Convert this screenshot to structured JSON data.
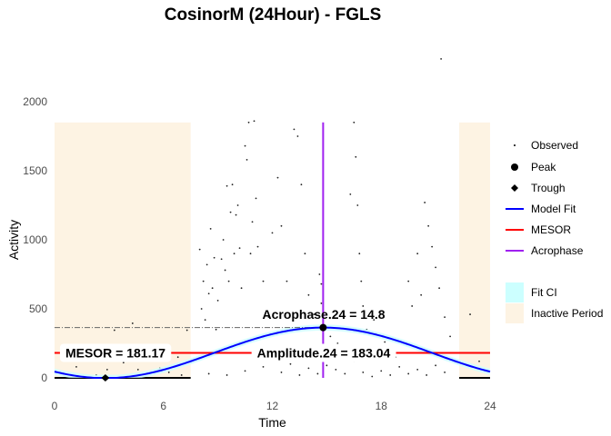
{
  "chart_data": {
    "type": "scatter",
    "title": "CosinorM (24Hour) - FGLS",
    "xlabel": "Time",
    "ylabel": "Activity",
    "xlim": [
      0,
      24
    ],
    "ylim": [
      0,
      2000
    ],
    "xticks": [
      0,
      6,
      12,
      18,
      24
    ],
    "yticks": [
      0,
      500,
      1000,
      1500,
      2000
    ],
    "grid": false,
    "legend_position": "right",
    "model": {
      "period": 24,
      "mesor": 181.17,
      "amplitude": 183.04,
      "acrophase": 14.8,
      "ci_halfwidth": 22
    },
    "peak": {
      "x": 14.8,
      "y": 364.21
    },
    "trough": {
      "x": 2.8,
      "y": 0
    },
    "inactive_periods": [
      [
        0,
        7.5
      ],
      [
        22.3,
        24
      ]
    ],
    "inactive_top": 1850,
    "annotations": {
      "mesor": "MESOR = 181.17",
      "amplitude": "Amplitude.24 = 183.04",
      "acrophase": "Acrophase.24 = 14.8"
    },
    "observed": [
      [
        0.5,
        30
      ],
      [
        1.2,
        80
      ],
      [
        1.6,
        240
      ],
      [
        2.3,
        20
      ],
      [
        2.9,
        60
      ],
      [
        3.3,
        345
      ],
      [
        3.8,
        110
      ],
      [
        4.3,
        395
      ],
      [
        4.6,
        60
      ],
      [
        5.2,
        150
      ],
      [
        5.8,
        70
      ],
      [
        6.3,
        40
      ],
      [
        6.8,
        150
      ],
      [
        7.3,
        345
      ],
      [
        7.0,
        20
      ],
      [
        8.0,
        930
      ],
      [
        8.1,
        500
      ],
      [
        8.2,
        700
      ],
      [
        8.3,
        420
      ],
      [
        8.4,
        820
      ],
      [
        8.5,
        610
      ],
      [
        8.6,
        1080
      ],
      [
        8.7,
        650
      ],
      [
        8.8,
        870
      ],
      [
        8.9,
        350
      ],
      [
        9.0,
        560
      ],
      [
        9.2,
        860
      ],
      [
        9.3,
        1000
      ],
      [
        9.4,
        780
      ],
      [
        9.5,
        1390
      ],
      [
        9.6,
        700
      ],
      [
        9.7,
        1200
      ],
      [
        9.8,
        1400
      ],
      [
        9.9,
        900
      ],
      [
        10.0,
        1180
      ],
      [
        10.1,
        1250
      ],
      [
        10.2,
        940
      ],
      [
        10.3,
        650
      ],
      [
        10.5,
        1680
      ],
      [
        10.6,
        1580
      ],
      [
        10.7,
        1850
      ],
      [
        10.8,
        900
      ],
      [
        10.9,
        1130
      ],
      [
        11.0,
        1860
      ],
      [
        11.1,
        1300
      ],
      [
        11.2,
        950
      ],
      [
        11.5,
        700
      ],
      [
        11.8,
        440
      ],
      [
        12.0,
        1050
      ],
      [
        12.3,
        1450
      ],
      [
        12.5,
        1100
      ],
      [
        12.8,
        700
      ],
      [
        13.2,
        1800
      ],
      [
        13.4,
        1750
      ],
      [
        13.6,
        1400
      ],
      [
        13.8,
        900
      ],
      [
        14.0,
        600
      ],
      [
        14.3,
        460
      ],
      [
        14.6,
        750
      ],
      [
        14.7,
        680
      ],
      [
        14.7,
        540
      ],
      [
        15.2,
        300
      ],
      [
        15.6,
        250
      ],
      [
        16.3,
        1330
      ],
      [
        16.5,
        1850
      ],
      [
        16.6,
        1600
      ],
      [
        16.7,
        1250
      ],
      [
        16.8,
        900
      ],
      [
        16.9,
        700
      ],
      [
        17.0,
        520
      ],
      [
        17.2,
        350
      ],
      [
        17.6,
        420
      ],
      [
        18.2,
        260
      ],
      [
        18.8,
        150
      ],
      [
        19.5,
        700
      ],
      [
        19.7,
        520
      ],
      [
        20.0,
        900
      ],
      [
        20.2,
        600
      ],
      [
        20.4,
        1270
      ],
      [
        20.6,
        1100
      ],
      [
        20.8,
        950
      ],
      [
        21.0,
        800
      ],
      [
        21.2,
        650
      ],
      [
        21.3,
        2310
      ],
      [
        21.5,
        440
      ],
      [
        21.8,
        300
      ],
      [
        22.9,
        460
      ],
      [
        23.4,
        120
      ],
      [
        8.5,
        30
      ],
      [
        9.5,
        20
      ],
      [
        10.5,
        50
      ],
      [
        11.5,
        80
      ],
      [
        12.5,
        40
      ],
      [
        13.0,
        100
      ],
      [
        13.5,
        20
      ],
      [
        14.0,
        70
      ],
      [
        14.5,
        30
      ],
      [
        15.0,
        90
      ],
      [
        15.5,
        60
      ],
      [
        16.0,
        30
      ],
      [
        16.5,
        120
      ],
      [
        17.0,
        40
      ],
      [
        17.5,
        10
      ],
      [
        18.0,
        50
      ],
      [
        18.5,
        20
      ],
      [
        19.0,
        80
      ],
      [
        19.5,
        30
      ],
      [
        20.0,
        60
      ],
      [
        20.5,
        20
      ],
      [
        21.0,
        90
      ],
      [
        21.5,
        40
      ]
    ]
  },
  "legend": {
    "items": [
      {
        "label": "Observed",
        "symbol": "dot",
        "color": "#000000"
      },
      {
        "label": "Peak",
        "symbol": "circle",
        "color": "#000000"
      },
      {
        "label": "Trough",
        "symbol": "diamond",
        "color": "#000000"
      },
      {
        "label": "Model Fit",
        "symbol": "line",
        "color": "#0000ff"
      },
      {
        "label": "MESOR",
        "symbol": "line",
        "color": "#ff0000"
      },
      {
        "label": "Acrophase",
        "symbol": "line",
        "color": "#a020f0"
      },
      {
        "label": "Fit CI",
        "symbol": "fill",
        "color": "#ccffff"
      },
      {
        "label": "Inactive Period",
        "symbol": "fill",
        "color": "#fdf3e3"
      }
    ]
  }
}
